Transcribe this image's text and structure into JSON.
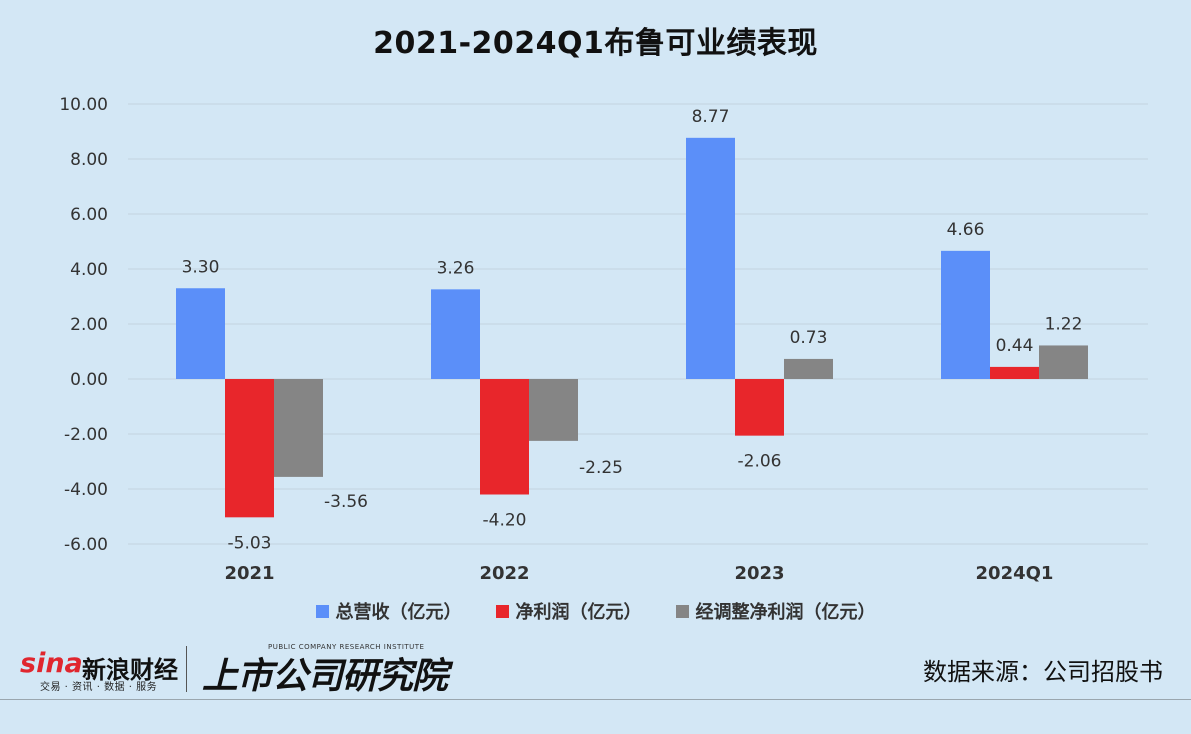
{
  "title": "2021-2024Q1布鲁可业绩表现",
  "source": "数据来源：公司招股书",
  "logos": {
    "sina": "sina",
    "sina_cn": "新浪财经",
    "sina_sub": "交易 · 资讯 · 数据 · 服务",
    "research": "上市公司研究院",
    "research_en": "PUBLIC COMPANY RESEARCH INSTITUTE"
  },
  "colors": {
    "background": "#d3e7f5",
    "revenue": "#5b8ff9",
    "net_profit": "#e8262b",
    "adjusted_net_profit": "#858585"
  },
  "chart_data": {
    "type": "bar",
    "title": "2021-2024Q1布鲁可业绩表现",
    "categories": [
      "2021",
      "2022",
      "2023",
      "2024Q1"
    ],
    "series": [
      {
        "name": "总营收（亿元）",
        "values": [
          3.3,
          3.26,
          8.77,
          4.66
        ],
        "color": "#5b8ff9"
      },
      {
        "name": "净利润（亿元）",
        "values": [
          -5.03,
          -4.2,
          -2.06,
          0.44
        ],
        "color": "#e8262b"
      },
      {
        "name": "经调整净利润（亿元）",
        "values": [
          -3.56,
          -2.25,
          0.73,
          1.22
        ],
        "color": "#858585"
      }
    ],
    "ylim": [
      -6,
      10
    ],
    "yticks": [
      "10.00",
      "8.00",
      "6.00",
      "4.00",
      "2.00",
      "0.00",
      "-2.00",
      "-4.00",
      "-6.00"
    ],
    "ytick_values": [
      10,
      8,
      6,
      4,
      2,
      0,
      -2,
      -4,
      -6
    ],
    "grid": true,
    "legend_position": "bottom"
  }
}
